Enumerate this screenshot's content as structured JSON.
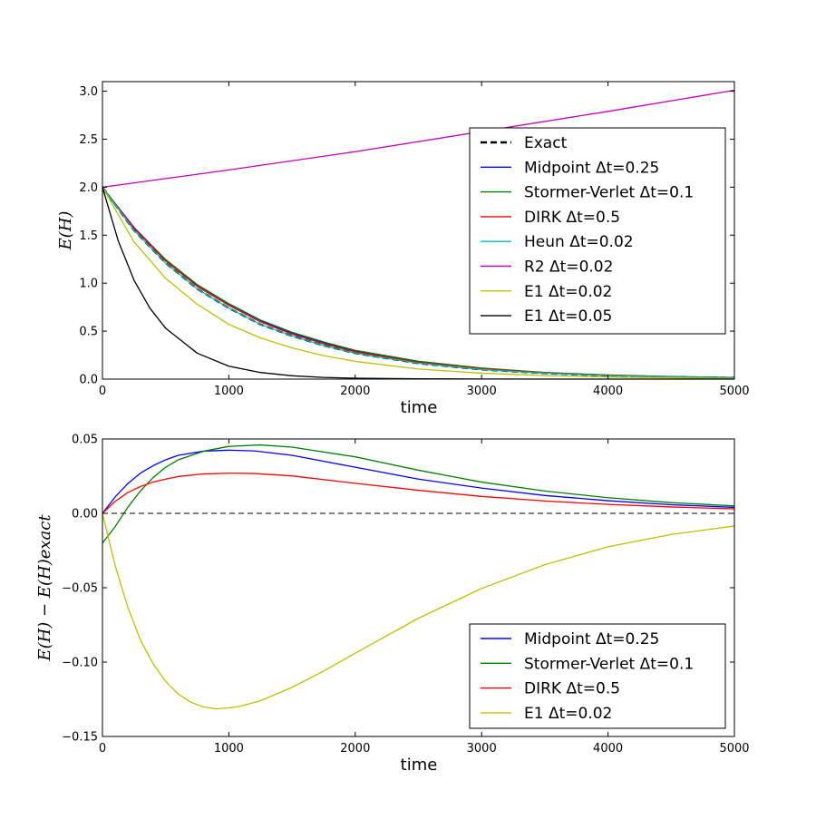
{
  "chart_data": [
    {
      "type": "line",
      "title": "",
      "xlabel": "time",
      "ylabel": "E(H)",
      "xlim": [
        0,
        5000
      ],
      "ylim": [
        0.0,
        3.1
      ],
      "xticks": [
        0,
        1000,
        2000,
        3000,
        4000,
        5000
      ],
      "xtick_labels": [
        "0",
        "1000",
        "2000",
        "3000",
        "4000",
        "5000"
      ],
      "yticks": [
        0.0,
        0.5,
        1.0,
        1.5,
        2.0,
        2.5,
        3.0
      ],
      "ytick_labels": [
        "0.0",
        "0.5",
        "1.0",
        "1.5",
        "2.0",
        "2.5",
        "3.0"
      ],
      "grid": false,
      "legend_position": "right",
      "series": [
        {
          "name": "Exact",
          "color": "#000000",
          "dashed": true,
          "x": [
            0,
            250,
            500,
            750,
            1000,
            1250,
            1500,
            1750,
            2000,
            2500,
            3000,
            3500,
            4000,
            4500,
            5000
          ],
          "values": [
            2.0,
            1.55,
            1.21,
            0.94,
            0.74,
            0.57,
            0.45,
            0.35,
            0.27,
            0.165,
            0.1,
            0.061,
            0.037,
            0.022,
            0.014
          ]
        },
        {
          "name": "Midpoint Δt=0.25",
          "color": "#0000ff",
          "dashed": false,
          "x": [
            0,
            250,
            500,
            750,
            1000,
            1250,
            1500,
            1750,
            2000,
            2500,
            3000,
            3500,
            4000,
            4500,
            5000
          ],
          "values": [
            2.0,
            1.58,
            1.245,
            0.98,
            0.782,
            0.61,
            0.48,
            0.38,
            0.29,
            0.178,
            0.11,
            0.067,
            0.041,
            0.025,
            0.016
          ]
        },
        {
          "name": "Stormer-Verlet Δt=0.1",
          "color": "#008000",
          "dashed": false,
          "x": [
            0,
            250,
            500,
            750,
            1000,
            1250,
            1500,
            1750,
            2000,
            2500,
            3000,
            3500,
            4000,
            4500,
            5000
          ],
          "values": [
            1.98,
            1.57,
            1.245,
            0.985,
            0.786,
            0.616,
            0.488,
            0.387,
            0.3,
            0.186,
            0.115,
            0.07,
            0.043,
            0.027,
            0.017
          ]
        },
        {
          "name": "DIRK Δt=0.5",
          "color": "#ff0000",
          "dashed": false,
          "x": [
            0,
            250,
            500,
            750,
            1000,
            1250,
            1500,
            1750,
            2000,
            2500,
            3000,
            3500,
            4000,
            4500,
            5000
          ],
          "values": [
            2.0,
            1.573,
            1.232,
            0.966,
            0.768,
            0.596,
            0.469,
            0.368,
            0.284,
            0.174,
            0.108,
            0.066,
            0.04,
            0.024,
            0.015
          ]
        },
        {
          "name": "Heun Δt=0.02",
          "color": "#00bfbf",
          "dashed": false,
          "x": [
            0,
            250,
            500,
            750,
            1000,
            1250,
            1500,
            1750,
            2000,
            2500,
            3000,
            3500,
            4000,
            4500,
            5000
          ],
          "values": [
            2.0,
            1.55,
            1.21,
            0.94,
            0.74,
            0.57,
            0.45,
            0.35,
            0.27,
            0.165,
            0.1,
            0.061,
            0.037,
            0.022,
            0.014
          ]
        },
        {
          "name": "R2 Δt=0.02",
          "color": "#bf00bf",
          "dashed": false,
          "x": [
            0,
            1000,
            2000,
            3000,
            4000,
            5000
          ],
          "values": [
            2.0,
            2.18,
            2.37,
            2.58,
            2.79,
            3.01
          ]
        },
        {
          "name": "E1 Δt=0.02",
          "color": "#bfbf00",
          "dashed": false,
          "x": [
            0,
            250,
            500,
            750,
            1000,
            1250,
            1500,
            1750,
            2000,
            2500,
            3000,
            3500,
            4000,
            4500,
            5000
          ],
          "values": [
            2.0,
            1.43,
            1.05,
            0.78,
            0.57,
            0.43,
            0.325,
            0.245,
            0.185,
            0.105,
            0.062,
            0.037,
            0.022,
            0.013,
            0.006
          ]
        },
        {
          "name": "E1 Δt=0.05",
          "color": "#000000",
          "dashed": false,
          "x": [
            0,
            125,
            250,
            375,
            500,
            750,
            1000,
            1250,
            1500,
            1750,
            2000,
            2500,
            3000,
            4000,
            5000
          ],
          "values": [
            2.0,
            1.44,
            1.03,
            0.74,
            0.53,
            0.27,
            0.135,
            0.069,
            0.035,
            0.018,
            0.009,
            0.003,
            0.001,
            0.0,
            0.0
          ]
        }
      ]
    },
    {
      "type": "line",
      "title": "",
      "xlabel": "time",
      "ylabel": "E(H) − E(H)exact",
      "xlim": [
        0,
        5000
      ],
      "ylim": [
        -0.15,
        0.05
      ],
      "xticks": [
        0,
        1000,
        2000,
        3000,
        4000,
        5000
      ],
      "xtick_labels": [
        "0",
        "1000",
        "2000",
        "3000",
        "4000",
        "5000"
      ],
      "yticks": [
        -0.15,
        -0.1,
        -0.05,
        0.0,
        0.05
      ],
      "ytick_labels": [
        "−0.15",
        "−0.10",
        "−0.05",
        "0.00",
        "0.05"
      ],
      "grid": false,
      "legend_position": "lower-right",
      "series": [
        {
          "name": "Midpoint Δt=0.25",
          "color": "#0000ff",
          "dashed": false,
          "x": [
            0,
            100,
            200,
            300,
            400,
            500,
            600,
            800,
            1000,
            1200,
            1500,
            2000,
            2500,
            3000,
            3500,
            4000,
            4500,
            5000
          ],
          "values": [
            0.0,
            0.011,
            0.02,
            0.027,
            0.032,
            0.036,
            0.039,
            0.0418,
            0.0425,
            0.042,
            0.039,
            0.031,
            0.023,
            0.017,
            0.012,
            0.0085,
            0.0058,
            0.004
          ]
        },
        {
          "name": "Stormer-Verlet Δt=0.1",
          "color": "#008000",
          "dashed": false,
          "x": [
            0,
            100,
            200,
            300,
            400,
            500,
            600,
            800,
            1000,
            1250,
            1500,
            2000,
            2500,
            3000,
            3500,
            4000,
            4500,
            5000
          ],
          "values": [
            -0.02,
            -0.009,
            0.004,
            0.015,
            0.024,
            0.031,
            0.036,
            0.0418,
            0.045,
            0.046,
            0.0445,
            0.038,
            0.029,
            0.021,
            0.015,
            0.0105,
            0.0072,
            0.005
          ]
        },
        {
          "name": "DIRK Δt=0.5",
          "color": "#ff0000",
          "dashed": false,
          "x": [
            0,
            100,
            200,
            300,
            400,
            500,
            600,
            800,
            1000,
            1200,
            1500,
            2000,
            2500,
            3000,
            3500,
            4000,
            4500,
            5000
          ],
          "values": [
            0.0,
            0.008,
            0.014,
            0.018,
            0.021,
            0.023,
            0.0248,
            0.0265,
            0.027,
            0.0268,
            0.0252,
            0.0202,
            0.0155,
            0.0114,
            0.0083,
            0.006,
            0.0043,
            0.003
          ]
        },
        {
          "name": "E1 Δt=0.02",
          "color": "#bfbf00",
          "dashed": false,
          "x": [
            0,
            100,
            200,
            300,
            400,
            500,
            600,
            700,
            800,
            900,
            1000,
            1100,
            1250,
            1500,
            1750,
            2000,
            2500,
            3000,
            3500,
            4000,
            4500,
            5000
          ],
          "values": [
            0.0,
            -0.035,
            -0.063,
            -0.085,
            -0.101,
            -0.113,
            -0.1215,
            -0.127,
            -0.1302,
            -0.1315,
            -0.1308,
            -0.1295,
            -0.126,
            -0.117,
            -0.106,
            -0.094,
            -0.0705,
            -0.0505,
            -0.0345,
            -0.0225,
            -0.0142,
            -0.0085
          ]
        },
        {
          "name": "zero-line",
          "color": "#000000",
          "dashed": true,
          "x": [
            0,
            5000
          ],
          "values": [
            0.0,
            0.0
          ]
        }
      ]
    }
  ]
}
